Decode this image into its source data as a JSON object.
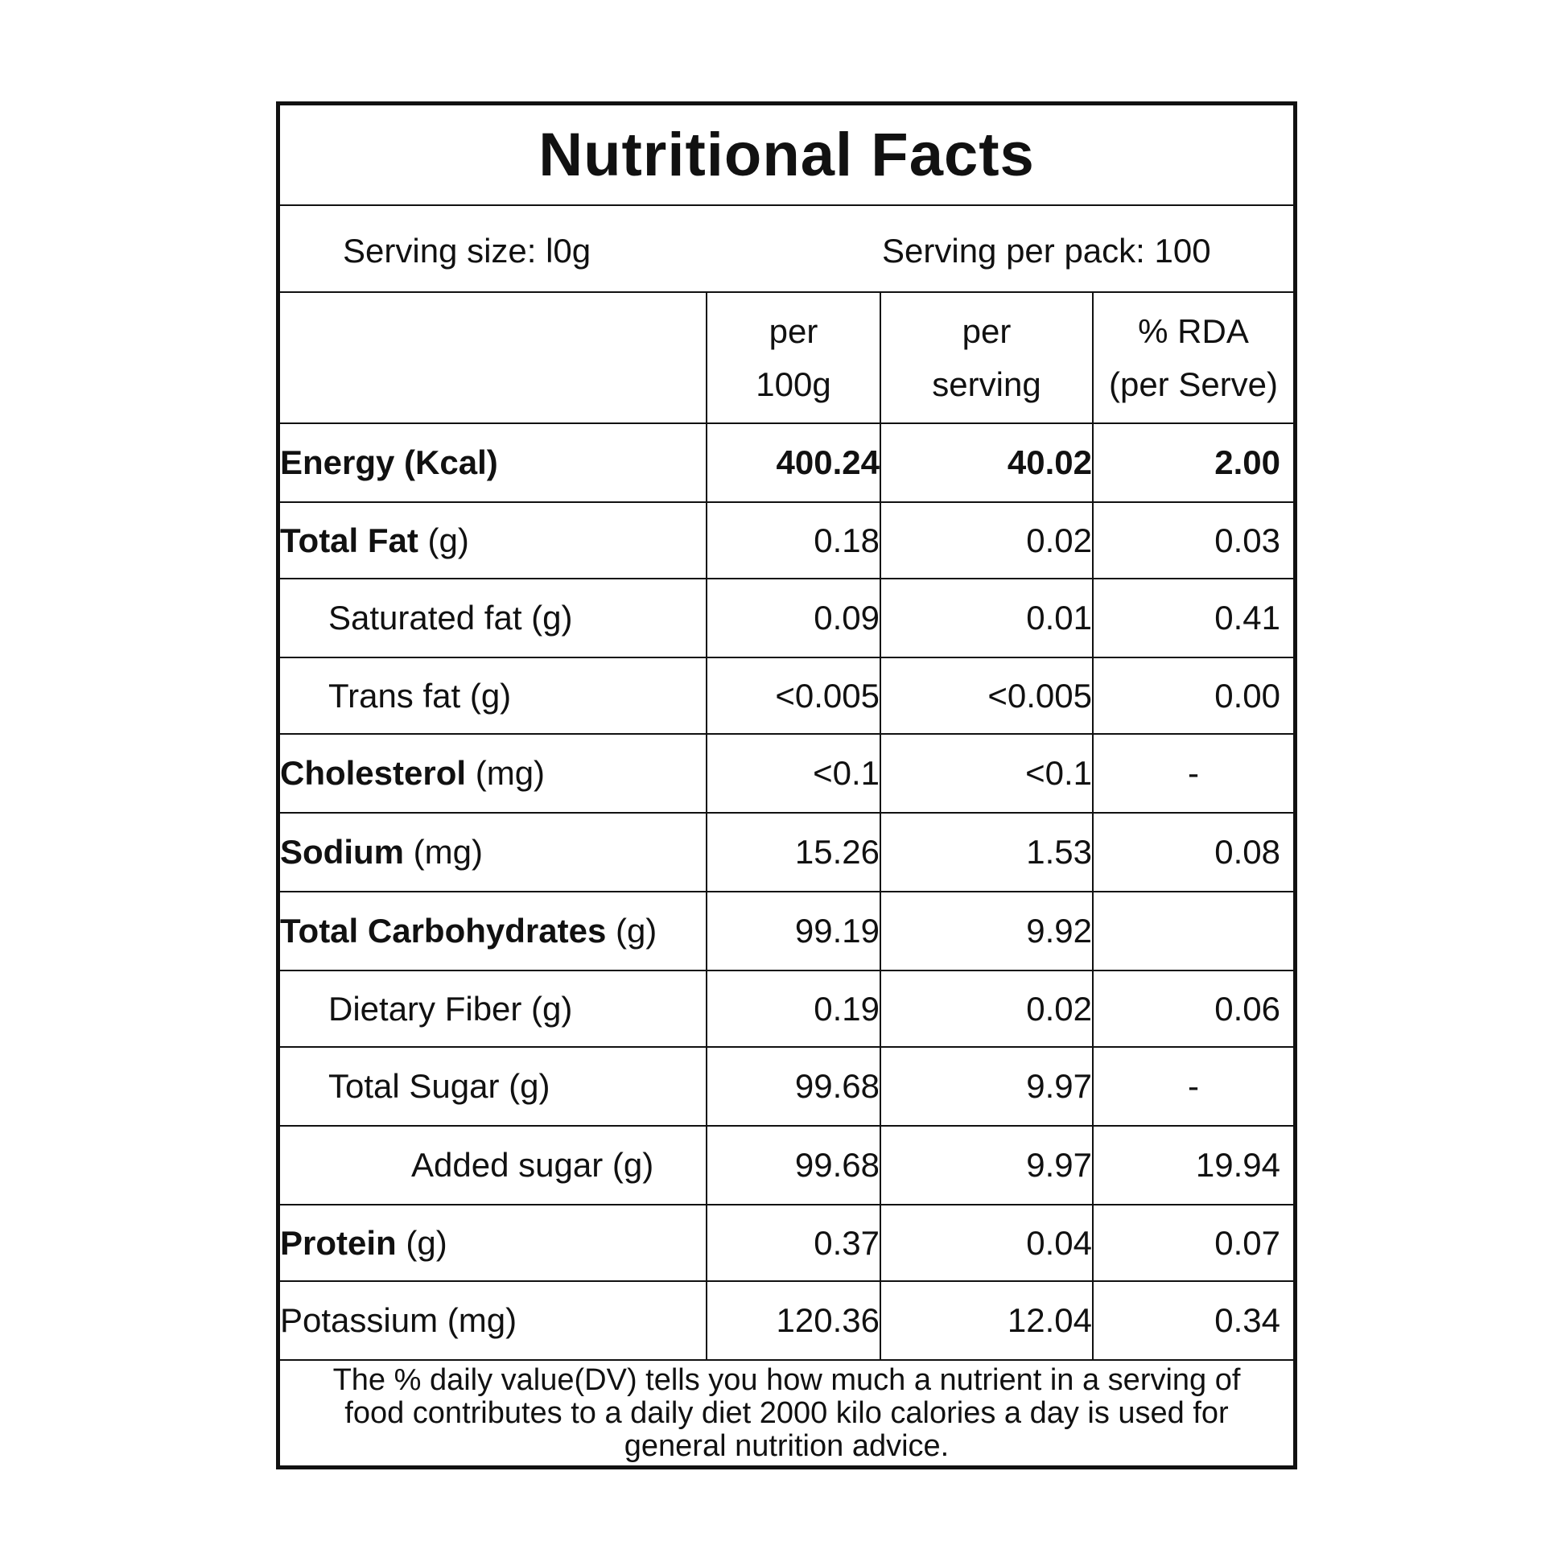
{
  "title": "Nutritional Facts",
  "serving": {
    "size": "Serving size: l0g",
    "per_pack": "Serving per pack: 100"
  },
  "columns": {
    "per100_line1": "per",
    "per100_line2": "100g",
    "perserving_line1": "per",
    "perserving_line2": "serving",
    "rda_line1": "% RDA",
    "rda_line2": "(per Serve)"
  },
  "rows": [
    {
      "name": "Energy (Kcal)",
      "unit": "",
      "per100": "400.24",
      "serving": "40.02",
      "rda": "2.00"
    },
    {
      "name": "Total Fat",
      "unit": " (g)",
      "per100": "0.18",
      "serving": "0.02",
      "rda": "0.03"
    },
    {
      "name": "Saturated fat (g)",
      "unit": "",
      "per100": "0.09",
      "serving": "0.01",
      "rda": "0.41"
    },
    {
      "name": "Trans fat (g)",
      "unit": "",
      "per100": "<0.005",
      "serving": "<0.005",
      "rda": "0.00"
    },
    {
      "name": "Cholesterol",
      "unit": " (mg)",
      "per100": "<0.1",
      "serving": "<0.1",
      "rda": "-"
    },
    {
      "name": "Sodium",
      "unit": " (mg)",
      "per100": "15.26",
      "serving": "1.53",
      "rda": "0.08"
    },
    {
      "name": "Total Carbohydrates",
      "unit": " (g)",
      "per100": "99.19",
      "serving": "9.92",
      "rda": ""
    },
    {
      "name": "Dietary Fiber (g)",
      "unit": "",
      "per100": "0.19",
      "serving": "0.02",
      "rda": "0.06"
    },
    {
      "name": "Total Sugar (g)",
      "unit": "",
      "per100": "99.68",
      "serving": "9.97",
      "rda": "-"
    },
    {
      "name": "Added sugar (g)",
      "unit": "",
      "per100": "99.68",
      "serving": "9.97",
      "rda": "19.94"
    },
    {
      "name": "Protein",
      "unit": " (g)",
      "per100": "0.37",
      "serving": "0.04",
      "rda": "0.07"
    },
    {
      "name": "Potassium (mg)",
      "unit": "",
      "per100": "120.36",
      "serving": "12.04",
      "rda": "0.34"
    }
  ],
  "footnote": "The % daily value(DV) tells you how much a nutrient in a serving of food contributes to a daily diet 2000 kilo calories a day is used for general nutrition advice."
}
